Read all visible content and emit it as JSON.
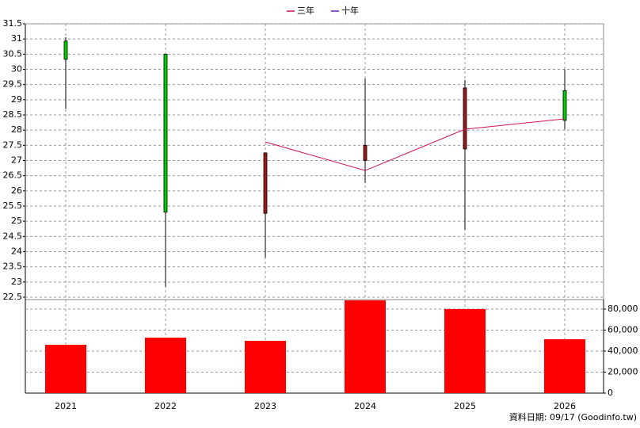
{
  "chart_data": {
    "type": "candlestick",
    "categories": [
      "2021",
      "2022",
      "2023",
      "2024",
      "2025",
      "2026"
    ],
    "open": [
      30.93,
      30.5,
      25.26,
      27.0,
      27.38,
      29.3
    ],
    "high": [
      31.06,
      30.5,
      27.25,
      29.7,
      29.65,
      30.0
    ],
    "low": [
      28.7,
      22.84,
      23.8,
      26.26,
      24.72,
      28.03
    ],
    "close": [
      30.33,
      25.3,
      27.25,
      27.5,
      29.39,
      28.32
    ],
    "up_color": "#a01818",
    "down_color": "#00d000",
    "series": [
      {
        "name": "三年",
        "color": "#d0105a",
        "values": [
          null,
          null,
          27.61,
          26.67,
          28.03,
          28.37
        ]
      },
      {
        "name": "十年",
        "color": "#6a1ab0",
        "values": [
          null,
          null,
          null,
          null,
          null,
          null
        ]
      }
    ],
    "ylim": [
      22.5,
      31.5
    ],
    "yticks": [
      22.5,
      23,
      23.5,
      24,
      24.5,
      25,
      25.5,
      26,
      26.5,
      27,
      27.5,
      28,
      28.5,
      29,
      29.5,
      30,
      30.5,
      31,
      31.5
    ],
    "volume": {
      "color": "#ff0000",
      "values": [
        46000,
        52800,
        49800,
        88300,
        80000,
        51300
      ]
    },
    "y2lim": [
      0,
      89000
    ],
    "y2ticks": [
      0,
      {
        "value": 20000,
        "label": "20,000"
      },
      {
        "value": 40000,
        "label": "40,000"
      },
      {
        "value": 60000,
        "label": "60,000"
      },
      {
        "value": 80000,
        "label": "80,000"
      }
    ],
    "grid": true
  },
  "footer": "資料日期: 09/17  (Goodinfo.tw)"
}
